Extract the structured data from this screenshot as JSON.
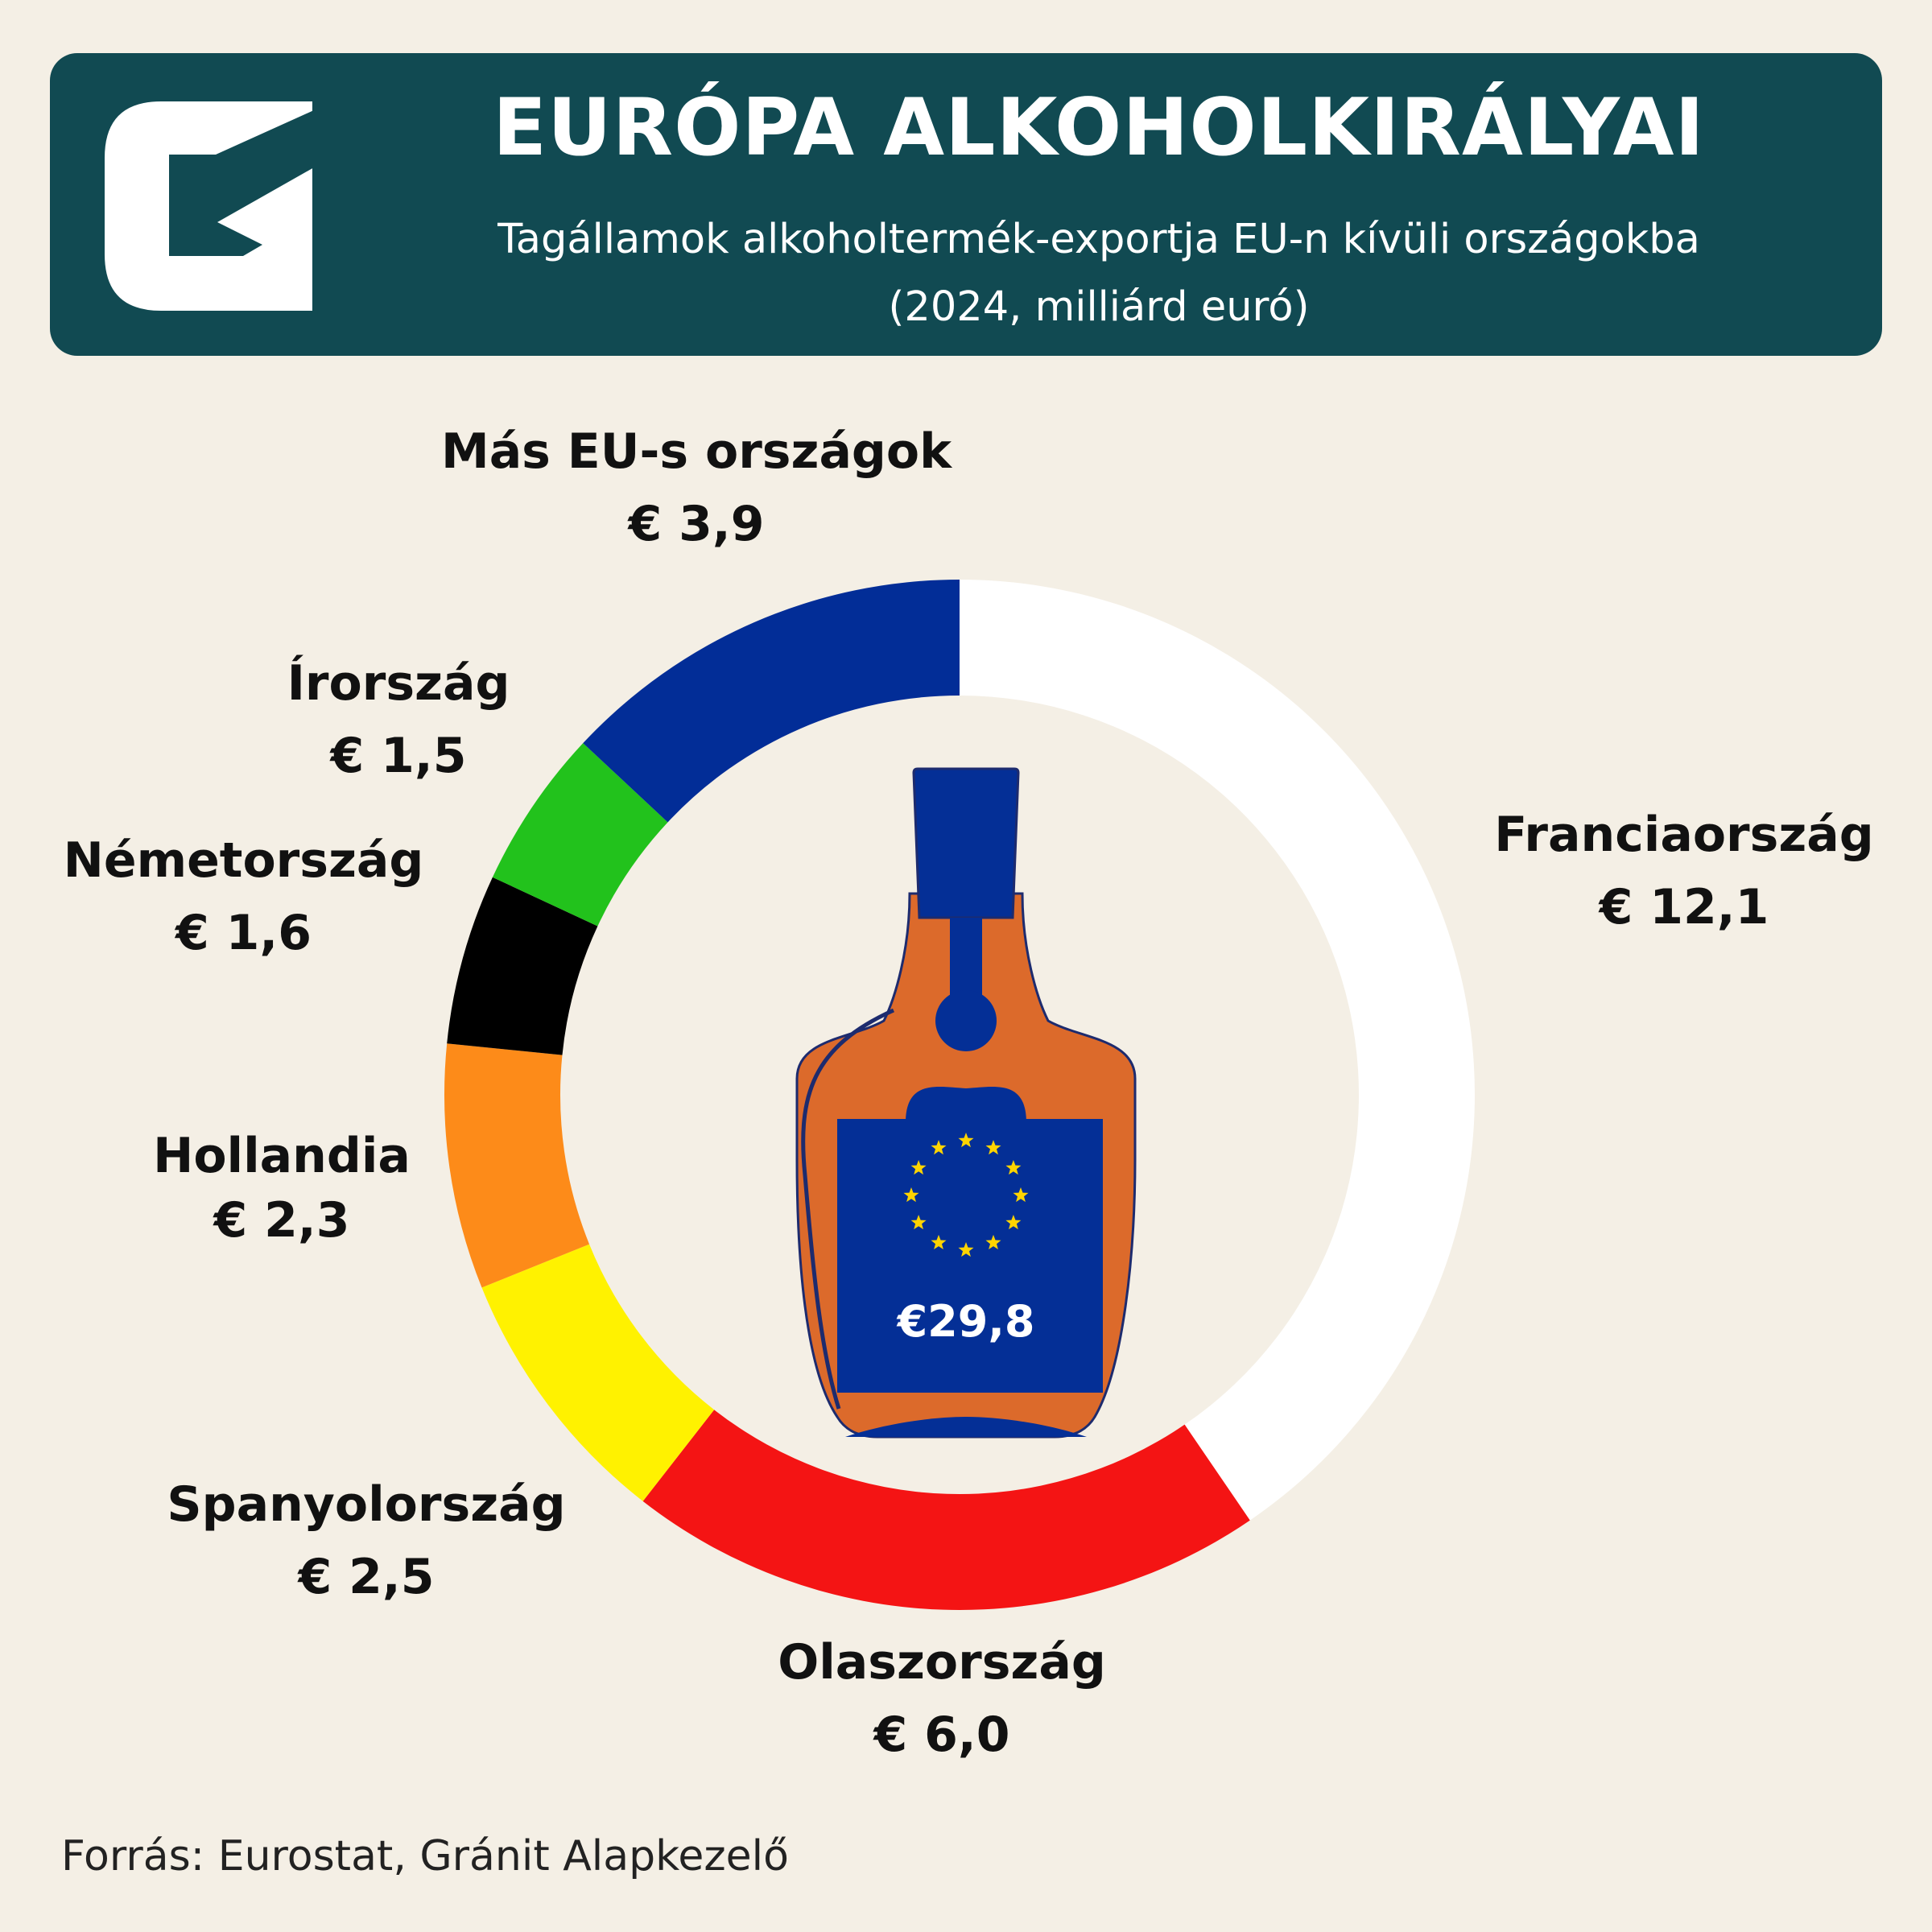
{
  "header": {
    "title": "EURÓPA ALKOHOLKIRÁLYAI",
    "subtitle_line1": "Tagállamok alkoholtermék-exportja EU-n kívüli országokba",
    "subtitle_line2": "(2024, milliárd euró)"
  },
  "logo": {
    "icon": "granit-g-logo-icon"
  },
  "center": {
    "bottle_icon": "liquor-bottle-icon",
    "flag_icon": "eu-flag-stars-icon",
    "total_label": "€29,8"
  },
  "source": "Forrás: Eurostat, Gránit Alapkezelő",
  "chart_data": {
    "type": "pie",
    "title": "EURÓPA ALKOHOLKIRÁLYAI",
    "subtitle": "Tagállamok alkoholtermék-exportja EU-n kívüli országokba (2024, milliárd euró)",
    "total": 29.8,
    "slices": [
      {
        "name": "Franciaország",
        "value": 12.1,
        "label": "€ 12,1",
        "color": "#ffffff"
      },
      {
        "name": "Olaszország",
        "value": 6.0,
        "label": "€ 6,0",
        "color": "#f41414"
      },
      {
        "name": "Spanyolország",
        "value": 2.5,
        "label": "€ 2,5",
        "color": "#fff200"
      },
      {
        "name": "Hollandia",
        "value": 2.3,
        "label": "€ 2,3",
        "color": "#fd8b19"
      },
      {
        "name": "Németország",
        "value": 1.6,
        "label": "€ 1,6",
        "color": "#000000"
      },
      {
        "name": "Írország",
        "value": 1.5,
        "label": "€ 1,5",
        "color": "#22c21c"
      },
      {
        "name": "Más EU-s országok",
        "value": 3.9,
        "label": "€ 3,9",
        "color": "#022d97"
      }
    ]
  }
}
